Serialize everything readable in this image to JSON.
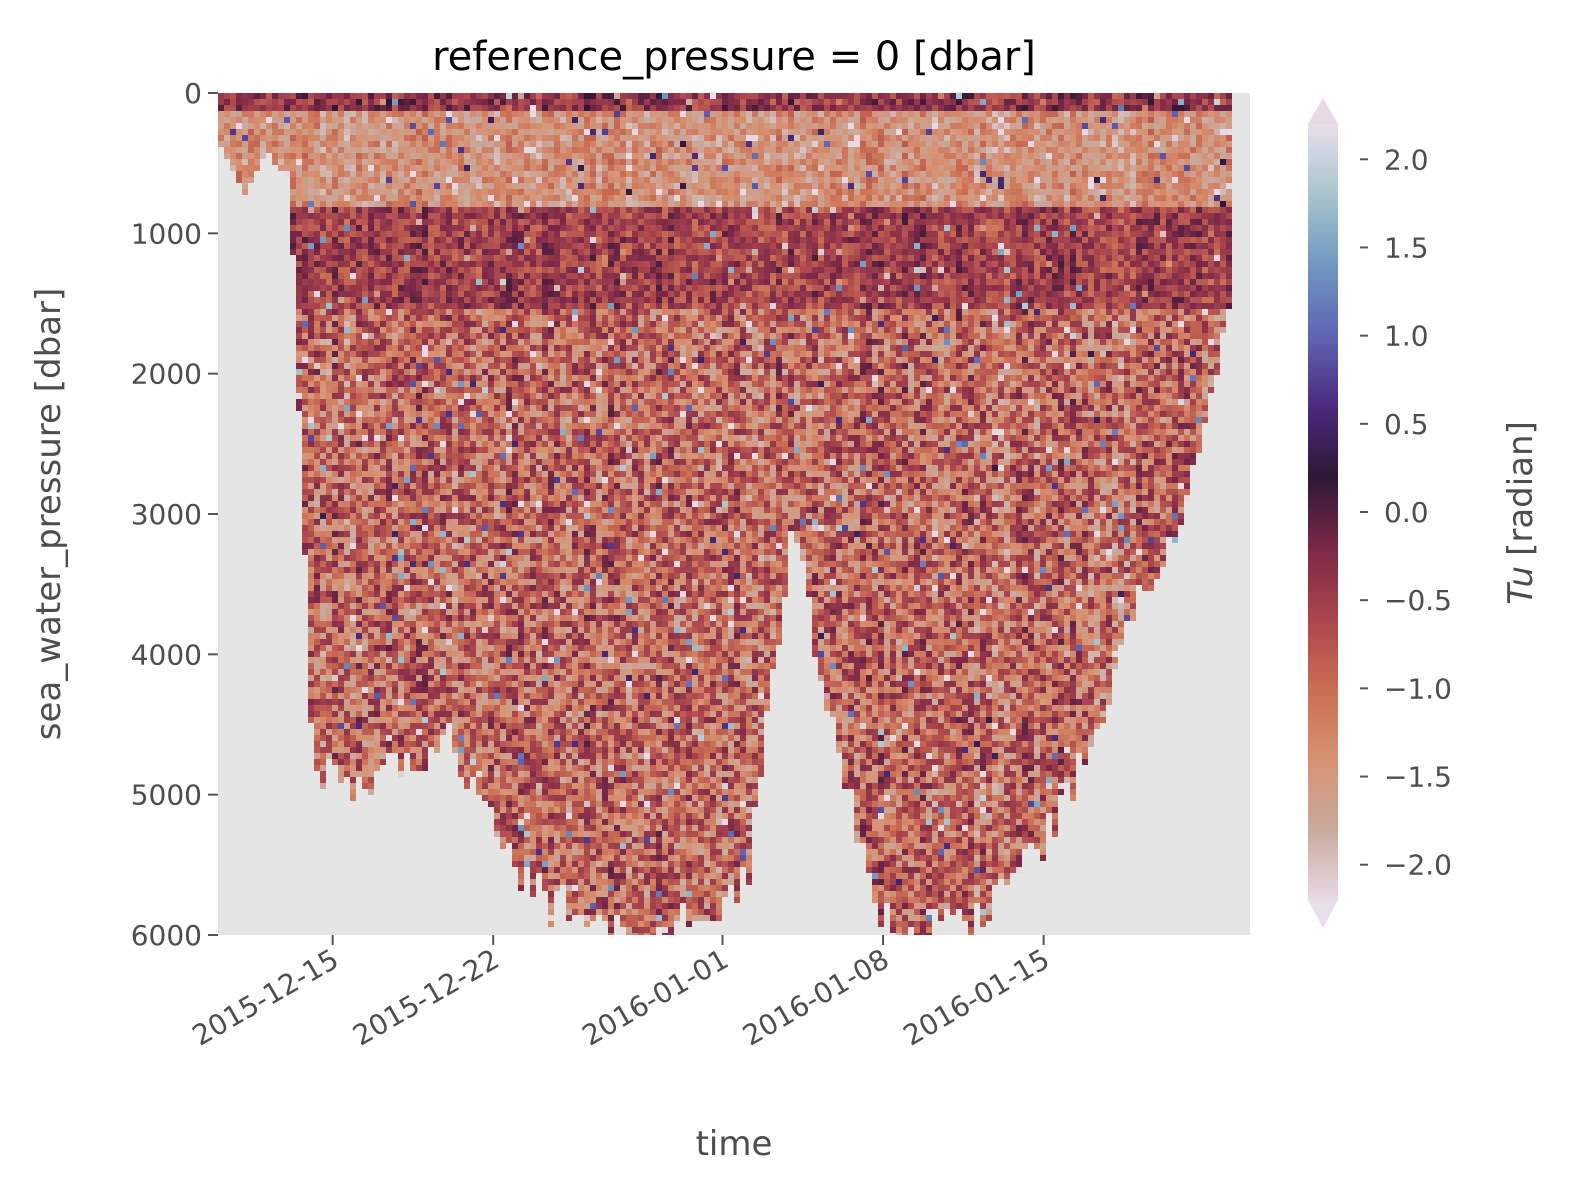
{
  "chart_data": {
    "type": "heatmap",
    "title": "reference_pressure = 0 [dbar]",
    "xlabel": "time",
    "ylabel": "sea_water_pressure [dbar]",
    "colorbar_label": "Tu [radian]",
    "colorbar_label_italic": "Tu",
    "colorbar_label_unit": "[radian]",
    "x_range": [
      "2015-12-10",
      "2016-01-24"
    ],
    "x_ticks": [
      "2015-12-15",
      "2015-12-22",
      "2016-01-01",
      "2016-01-08",
      "2016-01-15"
    ],
    "y_range": [
      0,
      6000
    ],
    "y_inverted": true,
    "y_ticks": [
      0,
      1000,
      2000,
      3000,
      4000,
      5000,
      6000
    ],
    "y_tick_labels": [
      "0",
      "1000",
      "2000",
      "3000",
      "4000",
      "5000",
      "6000"
    ],
    "colorbar_range": [
      -2.2,
      2.2
    ],
    "colorbar_extend": "both",
    "colorbar_ticks": [
      2.0,
      1.5,
      1.0,
      0.5,
      0.0,
      -0.5,
      -1.0,
      -1.5,
      -2.0
    ],
    "colorbar_tick_labels": [
      "2.0",
      "1.5",
      "1.0",
      "0.5",
      "0.0",
      "−0.5",
      "−1.0",
      "−1.5",
      "−2.0"
    ],
    "colormap": [
      "#e8d9e5",
      "#c9a99c",
      "#d79172",
      "#c96d54",
      "#a9454d",
      "#7a2748",
      "#2d1834",
      "#4b2a7f",
      "#6064b4",
      "#6f98c2",
      "#a9c5cd",
      "#e8dfea"
    ],
    "background_color": "#e5e5e5",
    "grid": false,
    "depth_profile": [
      {
        "time": "2015-12-10",
        "max_pressure": 380
      },
      {
        "time": "2015-12-11",
        "max_pressure": 700
      },
      {
        "time": "2015-12-12",
        "max_pressure": 400
      },
      {
        "time": "2015-12-13",
        "max_pressure": 600
      },
      {
        "time": "2015-12-14",
        "max_pressure": 4700
      },
      {
        "time": "2015-12-15",
        "max_pressure": 4900
      },
      {
        "time": "2015-12-17",
        "max_pressure": 4850
      },
      {
        "time": "2015-12-19",
        "max_pressure": 4700
      },
      {
        "time": "2015-12-20",
        "max_pressure": 4600
      },
      {
        "time": "2015-12-22",
        "max_pressure": 5300
      },
      {
        "time": "2015-12-24",
        "max_pressure": 5700
      },
      {
        "time": "2015-12-26",
        "max_pressure": 5900
      },
      {
        "time": "2015-12-28",
        "max_pressure": 6000
      },
      {
        "time": "2015-12-31",
        "max_pressure": 5900
      },
      {
        "time": "2016-01-02",
        "max_pressure": 5500
      },
      {
        "time": "2016-01-03",
        "max_pressure": 4200
      },
      {
        "time": "2016-01-04",
        "max_pressure": 3000
      },
      {
        "time": "2016-01-05",
        "max_pressure": 4000
      },
      {
        "time": "2016-01-06",
        "max_pressure": 4800
      },
      {
        "time": "2016-01-07",
        "max_pressure": 5400
      },
      {
        "time": "2016-01-08",
        "max_pressure": 5900
      },
      {
        "time": "2016-01-10",
        "max_pressure": 6000
      },
      {
        "time": "2016-01-12",
        "max_pressure": 5800
      },
      {
        "time": "2016-01-15",
        "max_pressure": 5300
      },
      {
        "time": "2016-01-17",
        "max_pressure": 4600
      },
      {
        "time": "2016-01-19",
        "max_pressure": 3600
      },
      {
        "time": "2016-01-21",
        "max_pressure": 3000
      },
      {
        "time": "2016-01-23",
        "max_pressure": 1500
      }
    ]
  }
}
